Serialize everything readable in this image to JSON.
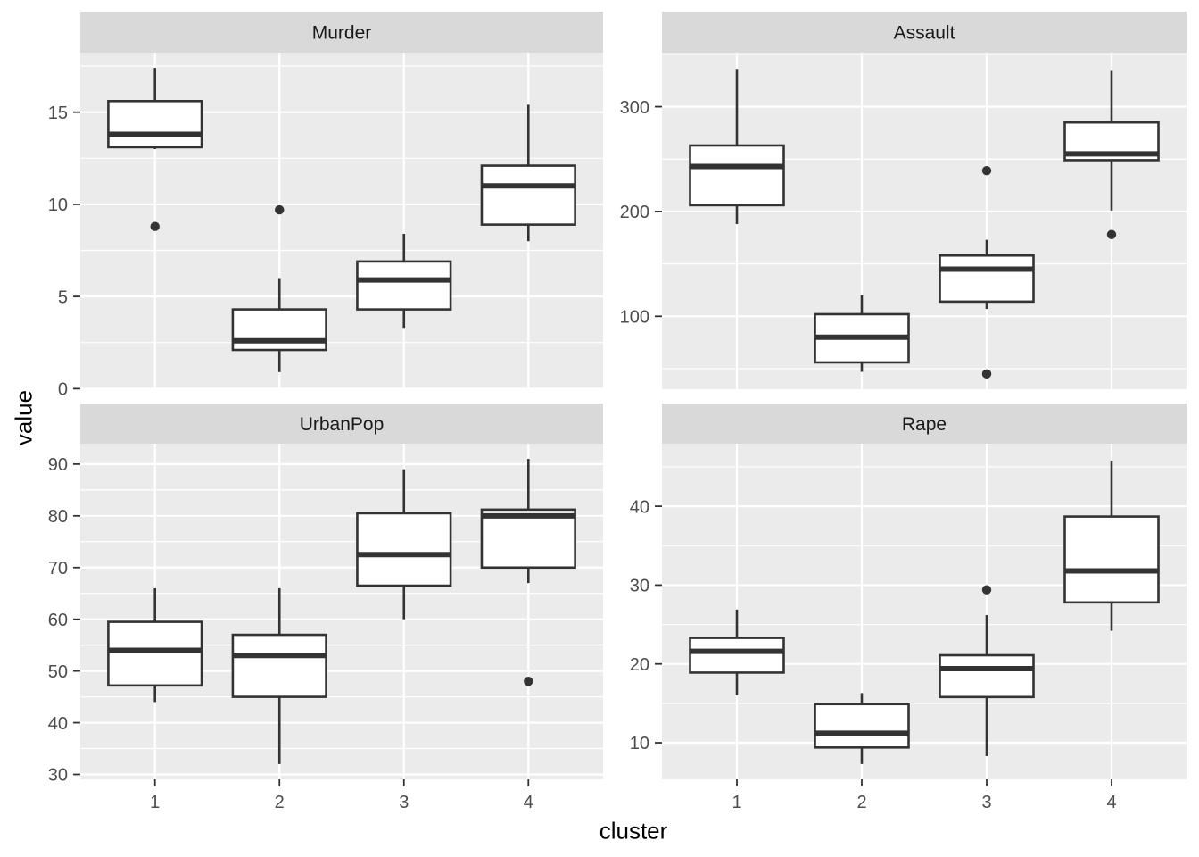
{
  "chart_data": {
    "type": "boxplot",
    "facets": true,
    "xlabel": "cluster",
    "ylabel": "value",
    "x_categories": [
      "1",
      "2",
      "3",
      "4"
    ],
    "legend": "none",
    "grid": "on",
    "style": {
      "panel_bg": "#EBEBEB",
      "strip_bg": "#D9D9D9",
      "strip_text": "#1A1A1A",
      "grid": "#FFFFFF",
      "box_stroke": "#333333",
      "box_fill": "#FFFFFF",
      "axis_text": "#4D4D4D",
      "axis_title": "#000000"
    },
    "panels": [
      {
        "title": "Murder",
        "ylim": [
          -0.03,
          18.23
        ],
        "yticks": [
          0,
          5,
          10,
          15
        ],
        "yminor": [
          2.5,
          7.5,
          12.5,
          17.5
        ],
        "boxes": [
          {
            "cluster": "1",
            "whisker_low": 13.0,
            "q1": 13.1,
            "median": 13.8,
            "q3": 15.6,
            "whisker_high": 17.4,
            "outliers": [
              8.8
            ]
          },
          {
            "cluster": "2",
            "whisker_low": 0.9,
            "q1": 2.1,
            "median": 2.6,
            "q3": 4.3,
            "whisker_high": 6.0,
            "outliers": [
              9.7
            ]
          },
          {
            "cluster": "3",
            "whisker_low": 3.3,
            "q1": 4.3,
            "median": 5.9,
            "q3": 6.9,
            "whisker_high": 8.4,
            "outliers": []
          },
          {
            "cluster": "4",
            "whisker_low": 8.0,
            "q1": 8.9,
            "median": 11.0,
            "q3": 12.1,
            "whisker_high": 15.4,
            "outliers": []
          }
        ]
      },
      {
        "title": "Assault",
        "ylim": [
          30.4,
          351.6
        ],
        "yticks": [
          100,
          200,
          300
        ],
        "yminor": [
          50,
          150,
          250,
          350
        ],
        "boxes": [
          {
            "cluster": "1",
            "whisker_low": 188,
            "q1": 206,
            "median": 243,
            "q3": 263,
            "whisker_high": 336,
            "outliers": []
          },
          {
            "cluster": "2",
            "whisker_low": 47,
            "q1": 56,
            "median": 80,
            "q3": 102,
            "whisker_high": 120,
            "outliers": []
          },
          {
            "cluster": "3",
            "whisker_low": 107,
            "q1": 114,
            "median": 145,
            "q3": 158,
            "whisker_high": 173,
            "outliers": [
              239,
              45
            ]
          },
          {
            "cluster": "4",
            "whisker_low": 201,
            "q1": 249,
            "median": 255,
            "q3": 285,
            "whisker_high": 335,
            "outliers": [
              178
            ]
          }
        ]
      },
      {
        "title": "UrbanPop",
        "ylim": [
          29.05,
          93.95
        ],
        "yticks": [
          30,
          40,
          50,
          60,
          70,
          80,
          90
        ],
        "yminor": [
          35,
          45,
          55,
          65,
          75,
          85
        ],
        "boxes": [
          {
            "cluster": "1",
            "whisker_low": 44,
            "q1": 47.2,
            "median": 54,
            "q3": 59.5,
            "whisker_high": 66,
            "outliers": []
          },
          {
            "cluster": "2",
            "whisker_low": 32,
            "q1": 45,
            "median": 53,
            "q3": 57,
            "whisker_high": 66,
            "outliers": []
          },
          {
            "cluster": "3",
            "whisker_low": 60,
            "q1": 66.5,
            "median": 72.5,
            "q3": 80.5,
            "whisker_high": 89,
            "outliers": []
          },
          {
            "cluster": "4",
            "whisker_low": 67,
            "q1": 70,
            "median": 80,
            "q3": 81.2,
            "whisker_high": 91,
            "outliers": [
              48
            ]
          }
        ]
      },
      {
        "title": "Rape",
        "ylim": [
          5.36,
          47.94
        ],
        "yticks": [
          10,
          20,
          30,
          40
        ],
        "yminor": [
          15,
          25,
          35,
          45
        ],
        "boxes": [
          {
            "cluster": "1",
            "whisker_low": 16.0,
            "q1": 18.9,
            "median": 21.6,
            "q3": 23.3,
            "whisker_high": 26.9,
            "outliers": []
          },
          {
            "cluster": "2",
            "whisker_low": 7.3,
            "q1": 9.4,
            "median": 11.2,
            "q3": 14.9,
            "whisker_high": 16.3,
            "outliers": []
          },
          {
            "cluster": "3",
            "whisker_low": 8.3,
            "q1": 15.8,
            "median": 19.4,
            "q3": 21.1,
            "whisker_high": 26.2,
            "outliers": [
              29.4
            ]
          },
          {
            "cluster": "4",
            "whisker_low": 24.2,
            "q1": 27.8,
            "median": 31.8,
            "q3": 38.7,
            "whisker_high": 45.8,
            "outliers": []
          }
        ]
      }
    ]
  }
}
